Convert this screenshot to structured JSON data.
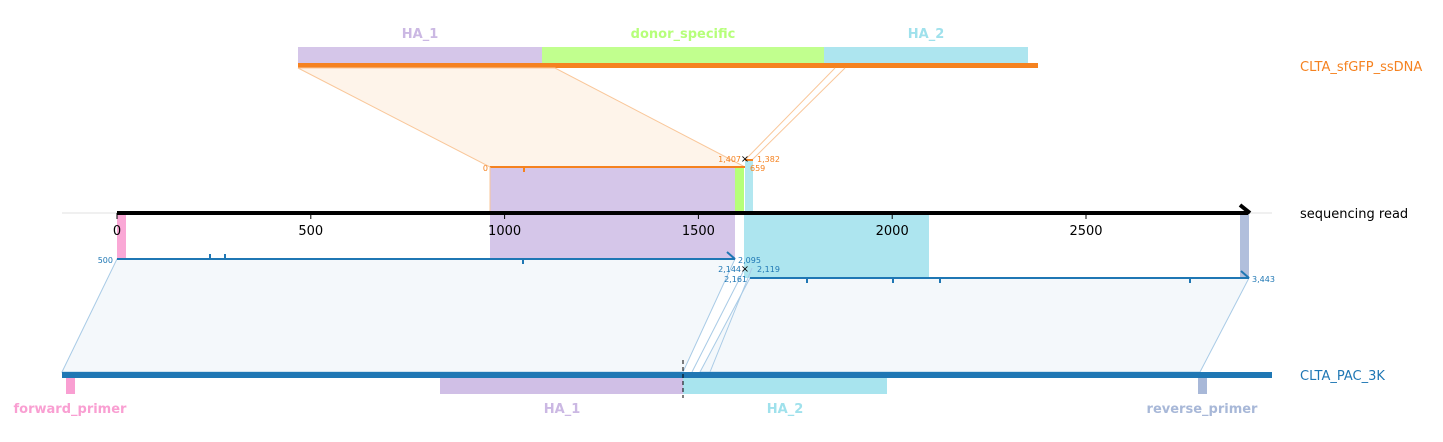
{
  "tracks": {
    "donor": {
      "name": "CLTA_sfGFP_ssDNA",
      "color": "#f58220"
    },
    "read": {
      "name": "sequencing read",
      "color": "#000000"
    },
    "reference": {
      "name": "CLTA_PAC_3K",
      "color": "#1f77b4"
    }
  },
  "donor_features": [
    {
      "name": "HA_1",
      "color": "#cbb8e3"
    },
    {
      "name": "donor_specific",
      "color": "#b6ff7a"
    },
    {
      "name": "HA_2",
      "color": "#9fe1ec"
    }
  ],
  "reference_features": [
    {
      "name": "forward_primer",
      "color": "#f99fd2"
    },
    {
      "name": "HA_1",
      "color": "#cbb8e3"
    },
    {
      "name": "HA_2",
      "color": "#9fe1ec"
    },
    {
      "name": "reverse_primer",
      "color": "#a8b8d8"
    }
  ],
  "read_axis": {
    "ticks": [
      0,
      500,
      1000,
      1500,
      2000,
      2500
    ],
    "tick_labels": [
      "0",
      "500",
      "1000",
      "1500",
      "2000",
      "2500"
    ],
    "range": [
      0,
      2920
    ]
  },
  "alignments": {
    "donor_alignment": {
      "start_label": "0",
      "end_label_a": "1,407",
      "end_label_b": "1,382",
      "end_label_c": "659"
    },
    "reference_alignment_1": {
      "start_label": "500",
      "end_label_a": "2,095",
      "end_label_b": "2,144"
    },
    "reference_alignment_2": {
      "start_label": "2,119",
      "start_label_b": "2,161",
      "end_label": "3,443"
    }
  }
}
